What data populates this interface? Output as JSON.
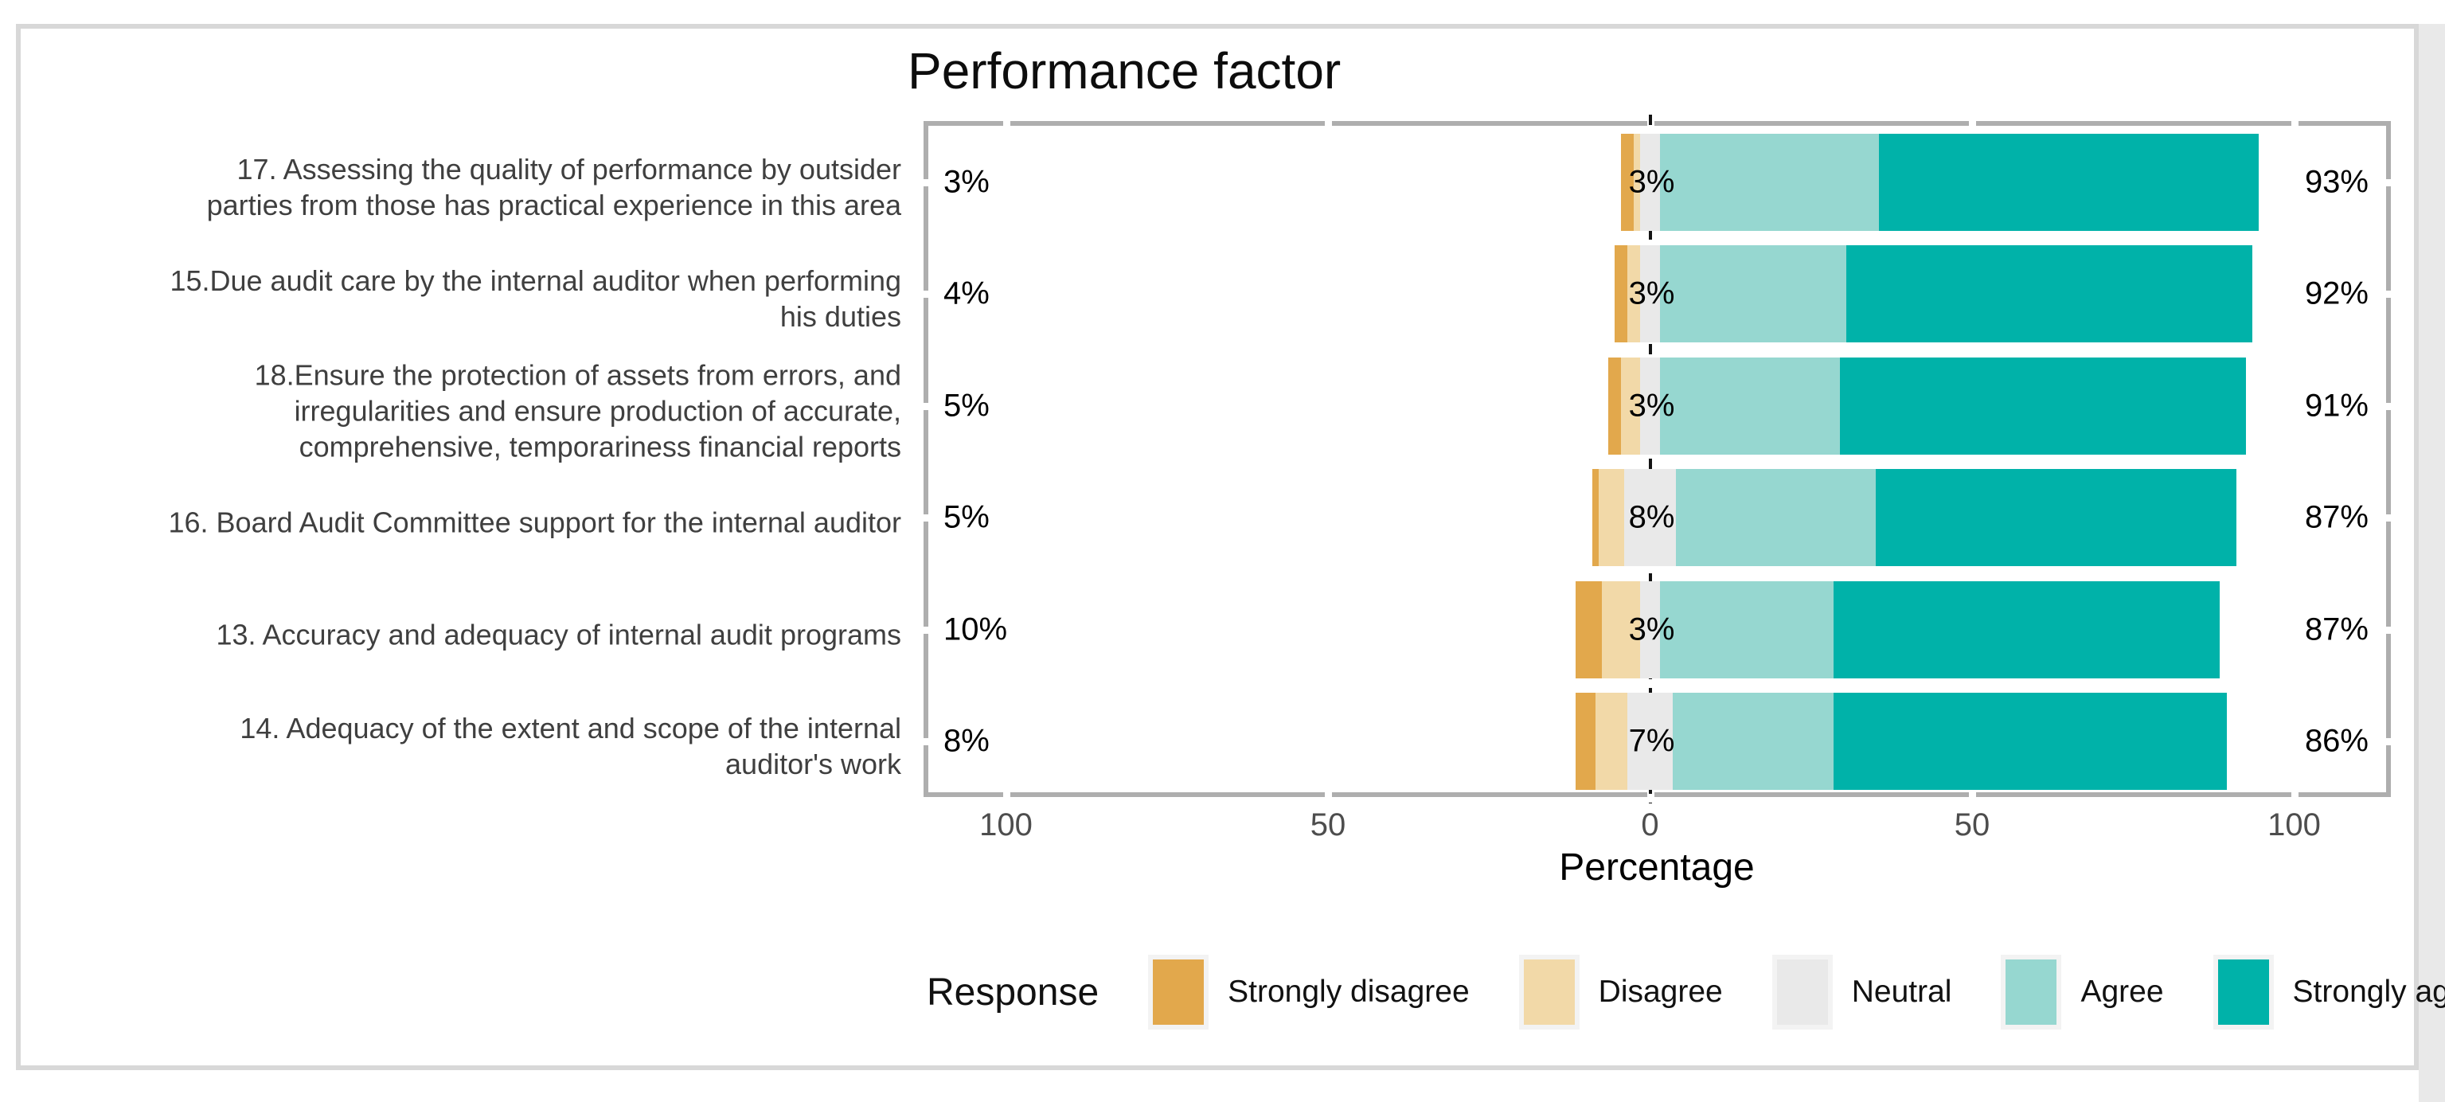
{
  "page": {
    "background": "#ffffff",
    "frame_color": "#d8d8d8",
    "scroll_strip_color": "#e9e9e9"
  },
  "colors": {
    "panel_border": "#aeaeae",
    "axis_tick_text": "#4d4d4d",
    "category_text": "#3f3f3f",
    "data_label_text": "#000000",
    "zero_line": "#141414"
  },
  "chart_data": {
    "type": "bar",
    "variant": "diverging-stacked-likert",
    "orientation": "horizontal",
    "title": "Performance factor",
    "xlabel": "Percentage",
    "grid": false,
    "neutral_centered": true,
    "axis_range": [
      -113,
      115
    ],
    "x_ticks": [
      {
        "value": -100,
        "label": "100"
      },
      {
        "value": -50,
        "label": "50"
      },
      {
        "value": 0,
        "label": "0"
      },
      {
        "value": 50,
        "label": "50"
      },
      {
        "value": 100,
        "label": "100"
      }
    ],
    "legend": {
      "title": "Response",
      "position": "bottom",
      "levels": [
        {
          "name": "Strongly disagree",
          "color": "#e2a84c"
        },
        {
          "name": "Disagree",
          "color": "#f2d9a8"
        },
        {
          "name": "Neutral",
          "color": "#e9e9e9"
        },
        {
          "name": "Agree",
          "color": "#96d7d0"
        },
        {
          "name": "Strongly agree",
          "color": "#00b2a9"
        }
      ]
    },
    "rows": [
      {
        "category": "17. Assessing the quality of performance by outsider\nparties from those has practical experience in this area",
        "values": {
          "Strongly disagree": 2,
          "Disagree": 1,
          "Neutral": 3,
          "Agree": 34,
          "Strongly agree": 59
        },
        "percent_labels": {
          "left": "3%",
          "center": "3%",
          "right": "93%"
        }
      },
      {
        "category": "15.Due audit care by the internal auditor when performing\nhis duties",
        "values": {
          "Strongly disagree": 2,
          "Disagree": 2,
          "Neutral": 3,
          "Agree": 29,
          "Strongly agree": 63
        },
        "percent_labels": {
          "left": "4%",
          "center": "3%",
          "right": "92%"
        }
      },
      {
        "category": "18.Ensure the protection of assets from errors, and\nirregularities and ensure production of accurate,\ncomprehensive, temporariness financial reports",
        "values": {
          "Strongly disagree": 2,
          "Disagree": 3,
          "Neutral": 3,
          "Agree": 28,
          "Strongly agree": 63
        },
        "percent_labels": {
          "left": "5%",
          "center": "3%",
          "right": "91%"
        }
      },
      {
        "category": "16. Board Audit Committee support for the internal auditor",
        "values": {
          "Strongly disagree": 1,
          "Disagree": 4,
          "Neutral": 8,
          "Agree": 31,
          "Strongly agree": 56
        },
        "percent_labels": {
          "left": "5%",
          "center": "8%",
          "right": "87%"
        }
      },
      {
        "category": "13. Accuracy and adequacy of internal audit programs",
        "values": {
          "Strongly disagree": 4,
          "Disagree": 6,
          "Neutral": 3,
          "Agree": 27,
          "Strongly agree": 60
        },
        "percent_labels": {
          "left": "10%",
          "center": "3%",
          "right": "87%"
        }
      },
      {
        "category": "14. Adequacy of the extent and scope of the internal\nauditor's work",
        "values": {
          "Strongly disagree": 3,
          "Disagree": 5,
          "Neutral": 7,
          "Agree": 25,
          "Strongly agree": 61
        },
        "percent_labels": {
          "left": "8%",
          "center": "7%",
          "right": "86%"
        }
      }
    ]
  }
}
